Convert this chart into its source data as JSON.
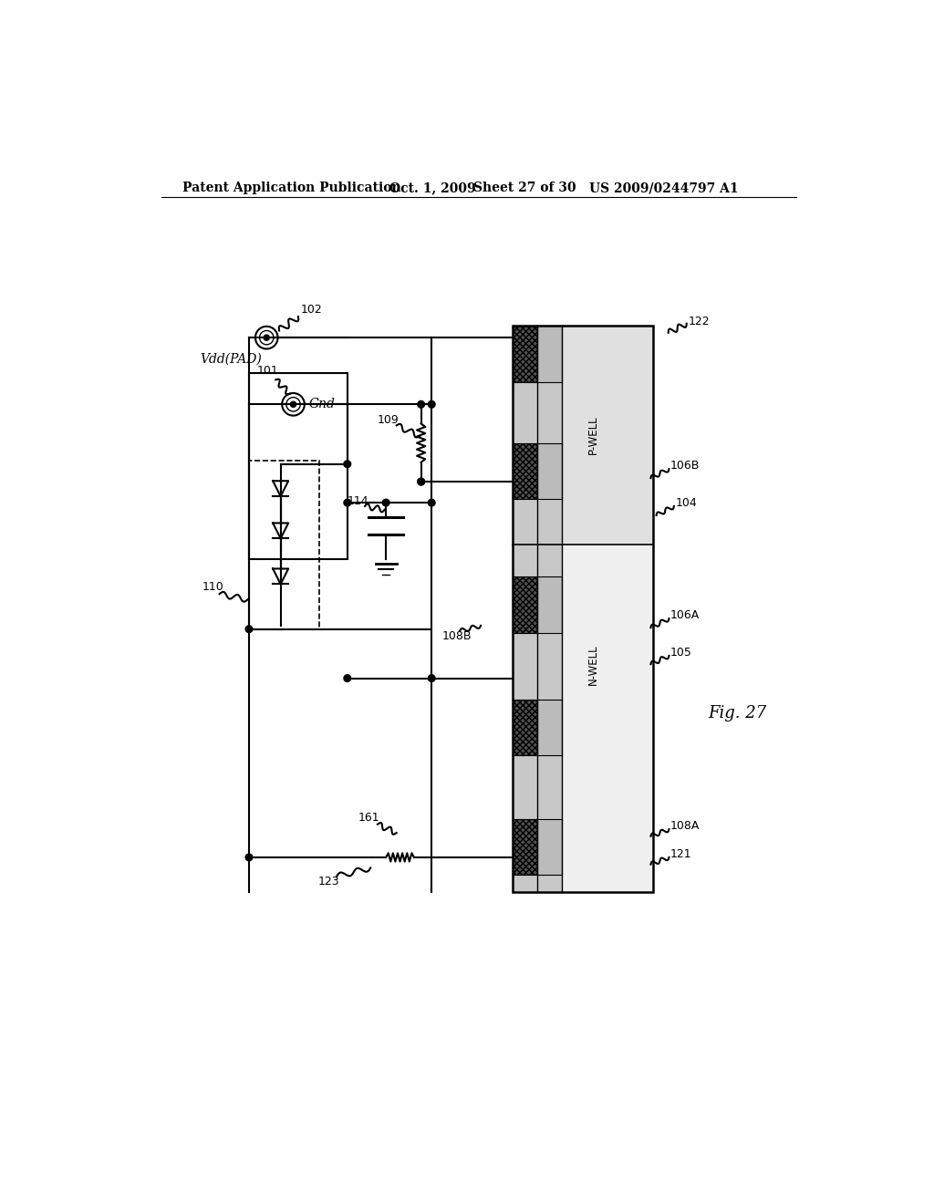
{
  "background_color": "#ffffff",
  "header_text": "Patent Application Publication",
  "header_date": "Oct. 1, 2009",
  "header_sheet": "Sheet 27 of 30",
  "header_patent": "US 2009/0244797 A1",
  "fig_label": "Fig. 27",
  "labels": {
    "vdd_pad": "Vdd(PAD)",
    "gnd": "Gnd",
    "n101": "101",
    "n102": "102",
    "n109": "109",
    "n110": "110",
    "n114": "114",
    "n108B": "108B",
    "n108A": "108A",
    "n106B": "106B",
    "n106A": "106A",
    "n105": "105",
    "n104": "104",
    "n122": "122",
    "n121": "121",
    "n123": "123",
    "n161": "161",
    "pwell": "P-WELL",
    "nwell": "N-WELL"
  },
  "colors": {
    "black": "#000000",
    "white": "#ffffff",
    "light_gray": "#d0d0d0",
    "med_gray": "#a0a0a0",
    "dark_gray": "#606060",
    "hatch_gray": "#808080",
    "cross_hatch": "#404040"
  }
}
